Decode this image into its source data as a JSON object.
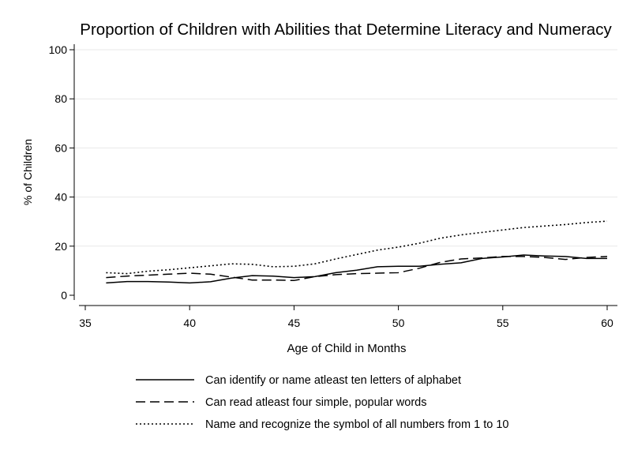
{
  "chart_data": {
    "type": "line",
    "title": "Proportion of Children with Abilities that Determine Literacy and Numeracy",
    "xlabel": "Age of Child in Months",
    "ylabel": "% of Children",
    "xlim": [
      35,
      60
    ],
    "ylim": [
      0,
      100
    ],
    "xticks": [
      35,
      40,
      45,
      50,
      55,
      60
    ],
    "yticks": [
      0,
      20,
      40,
      60,
      80,
      100
    ],
    "grid": "horizontal",
    "legend_position": "bottom",
    "series": [
      {
        "name": "Can identify or name atleast ten letters of alphabet",
        "dash": "solid",
        "x": [
          36,
          37,
          38,
          39,
          40,
          41,
          42,
          43,
          44,
          45,
          46,
          47,
          48,
          49,
          50,
          51,
          52,
          53,
          54,
          55,
          56,
          57,
          58,
          59,
          60
        ],
        "y": [
          5,
          5.6,
          5.6,
          5.4,
          5,
          5.5,
          7,
          8,
          7.8,
          7.2,
          7.6,
          9.2,
          10.2,
          11.6,
          11.8,
          11.8,
          12.6,
          13.2,
          15,
          15.6,
          16.4,
          16,
          15.8,
          15,
          15
        ]
      },
      {
        "name": "Can read atleast four simple, popular words",
        "dash": "dashed",
        "x": [
          36,
          37,
          38,
          39,
          40,
          41,
          42,
          43,
          44,
          45,
          46,
          47,
          48,
          49,
          50,
          51,
          52,
          53,
          54,
          55,
          56,
          57,
          58,
          59,
          60
        ],
        "y": [
          7.2,
          7.8,
          8.2,
          8.6,
          9,
          8.6,
          7.4,
          6.2,
          6.2,
          6,
          7.6,
          8.4,
          8.8,
          9,
          9.2,
          11,
          13.4,
          14.8,
          15.2,
          15.8,
          15.8,
          15.4,
          14.6,
          15.4,
          15.8
        ]
      },
      {
        "name": "Name and recognize the symbol of all numbers from 1 to 10",
        "dash": "dotted",
        "x": [
          36,
          37,
          38,
          39,
          40,
          41,
          42,
          43,
          44,
          45,
          46,
          47,
          48,
          49,
          50,
          51,
          52,
          53,
          54,
          55,
          56,
          57,
          58,
          59,
          60
        ],
        "y": [
          9.2,
          8.8,
          9.8,
          10.4,
          11.2,
          12,
          12.8,
          12.6,
          11.6,
          11.8,
          12.8,
          14.8,
          16.6,
          18.4,
          19.6,
          21.2,
          23.2,
          24.6,
          25.6,
          26.6,
          27.6,
          28.2,
          28.8,
          29.6,
          30.2
        ]
      }
    ]
  }
}
